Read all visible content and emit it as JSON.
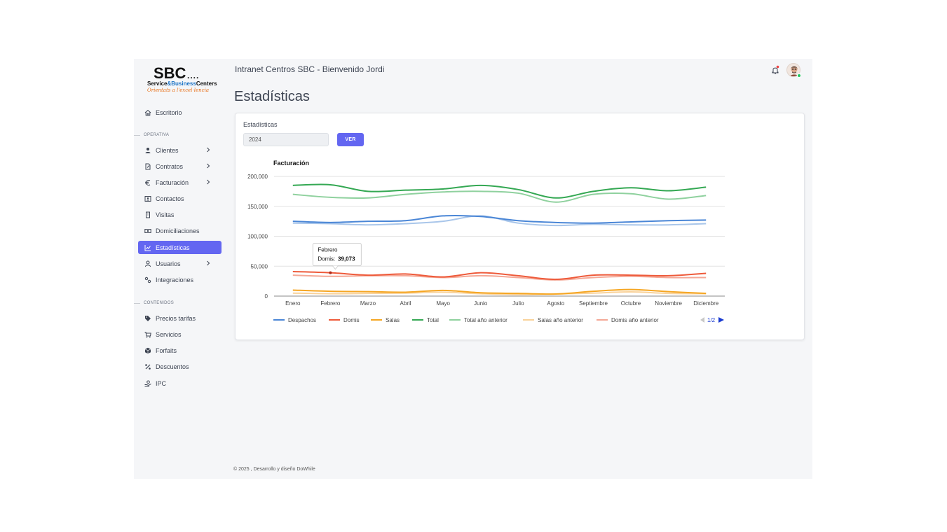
{
  "header": {
    "title": "Intranet Centros SBC - Bienvenido Jordi"
  },
  "logo": {
    "main": "SBC",
    "dots": "....",
    "sub_1": "Service",
    "sub_amp": "&",
    "sub_2": "Business",
    "sub_3": "Centers",
    "tagline": "Orientats a l'excel·lencia"
  },
  "sidebar": {
    "top": [
      {
        "label": "Escritorio",
        "icon": "home-icon"
      }
    ],
    "section_operativa": "OPERATIVA",
    "operativa": [
      {
        "label": "Clientes",
        "icon": "users-icon",
        "chevron": true
      },
      {
        "label": "Contratos",
        "icon": "document-icon",
        "chevron": true
      },
      {
        "label": "Facturación",
        "icon": "euro-icon",
        "chevron": true
      },
      {
        "label": "Contactos",
        "icon": "contact-card-icon",
        "chevron": false
      },
      {
        "label": "Visitas",
        "icon": "building-icon",
        "chevron": false
      },
      {
        "label": "Domiciliaciones",
        "icon": "money-icon",
        "chevron": false
      },
      {
        "label": "Estadísticas",
        "icon": "chart-line-icon",
        "chevron": false,
        "active": true
      },
      {
        "label": "Usuarios",
        "icon": "user-icon",
        "chevron": true
      },
      {
        "label": "Integraciones",
        "icon": "cogs-icon",
        "chevron": false
      }
    ],
    "section_contenidos": "CONTENIDOS",
    "contenidos": [
      {
        "label": "Precios tarifas",
        "icon": "tags-icon"
      },
      {
        "label": "Servicios",
        "icon": "cart-icon"
      },
      {
        "label": "Forfaits",
        "icon": "box-icon"
      },
      {
        "label": "Descuentos",
        "icon": "percent-icon"
      },
      {
        "label": "IPC",
        "icon": "hand-money-icon"
      }
    ]
  },
  "page": {
    "title": "Estadísticas"
  },
  "card": {
    "title": "Estadísticas",
    "year_value": "2024",
    "ver_label": "VER"
  },
  "chart_data": {
    "type": "line",
    "title": "Facturación",
    "xlabel": "",
    "ylabel": "",
    "ylim": [
      0,
      200000
    ],
    "yticks": [
      0,
      50000,
      100000,
      150000,
      200000
    ],
    "ytick_labels": [
      "0",
      "50,000",
      "100,000",
      "150,000",
      "200,000"
    ],
    "categories": [
      "Enero",
      "Febrero",
      "Marzo",
      "Abril",
      "Mayo",
      "Junio",
      "Julio",
      "Agosto",
      "Septiembre",
      "Octubre",
      "Noviembre",
      "Diciembre"
    ],
    "grid": true,
    "legend_placement": "bottom",
    "series": [
      {
        "name": "Despachos",
        "color": "#4a86d6",
        "width": 2,
        "values": [
          125000,
          123000,
          125000,
          126000,
          134000,
          133000,
          126000,
          123000,
          122000,
          124000,
          126000,
          127000
        ]
      },
      {
        "name": "Domis",
        "color": "#ee5a3a",
        "width": 2,
        "values": [
          41000,
          39073,
          35000,
          37000,
          32000,
          39000,
          34000,
          28000,
          35000,
          35000,
          34000,
          38000
        ]
      },
      {
        "name": "Salas",
        "color": "#f5a623",
        "width": 2,
        "values": [
          10000,
          8000,
          7500,
          6500,
          9500,
          5500,
          4500,
          3500,
          8000,
          11000,
          7500,
          4500
        ]
      },
      {
        "name": "Total",
        "color": "#34a853",
        "width": 2,
        "values": [
          185000,
          186000,
          175000,
          177000,
          179000,
          185000,
          178000,
          164000,
          175000,
          181000,
          176000,
          182000
        ]
      },
      {
        "name": "Total año anterior",
        "color": "#8fd19e",
        "width": 2,
        "values": [
          170000,
          165000,
          164000,
          170000,
          174000,
          175000,
          172000,
          157000,
          170000,
          171000,
          162000,
          168000
        ]
      },
      {
        "name": "Salas año anterior",
        "color": "#f9d29a",
        "width": 2,
        "values": [
          5000,
          4000,
          4500,
          5000,
          6500,
          4000,
          2500,
          3500,
          5000,
          7000,
          4500,
          4000
        ]
      },
      {
        "name": "Domis año anterior",
        "color": "#f4a896",
        "width": 2,
        "values": [
          35000,
          33000,
          34000,
          34000,
          31000,
          34000,
          31000,
          27000,
          31000,
          33000,
          31000,
          31000
        ]
      },
      {
        "name": "",
        "color": "#a9c6ea",
        "width": 2,
        "values": [
          122000,
          121000,
          119000,
          121000,
          125000,
          134000,
          122000,
          118000,
          120000,
          119000,
          119000,
          121000
        ]
      }
    ],
    "legend_page": "1/2",
    "tooltip": {
      "category": "Febrero",
      "series": "Domis",
      "value_label": "39,073"
    }
  },
  "footer": {
    "text": "© 2025 , Desarrollo y diseño DoWhile"
  }
}
